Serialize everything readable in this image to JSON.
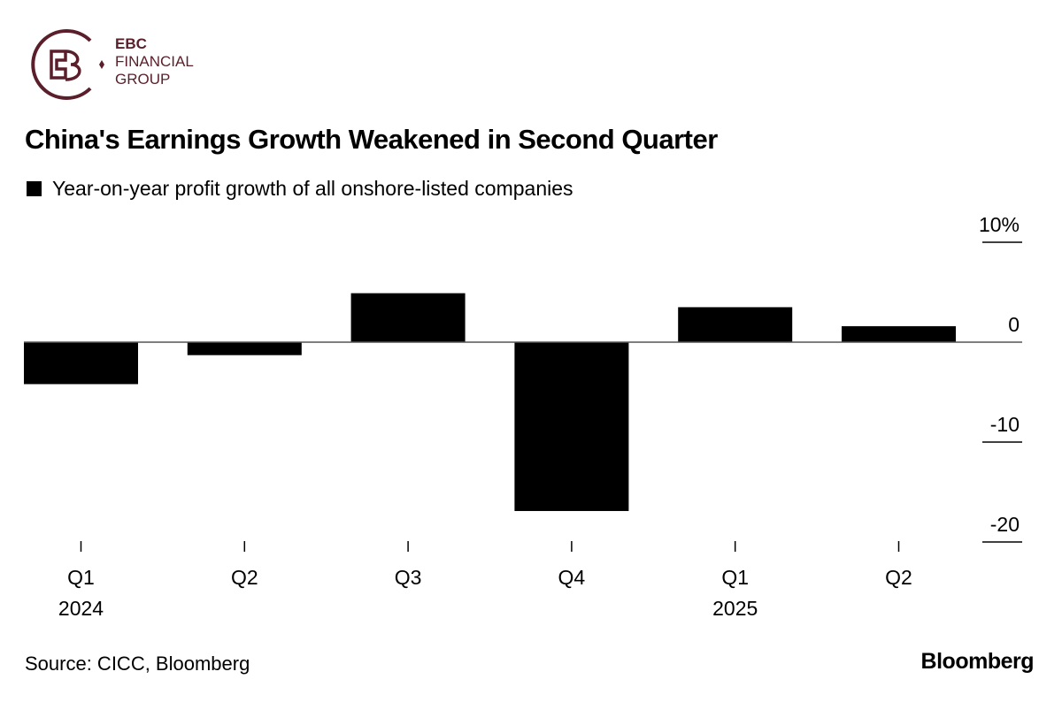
{
  "logo": {
    "line1": "EBC",
    "line2": "FINANCIAL",
    "line3": "GROUP",
    "color": "#5a1f2b"
  },
  "chart_data": {
    "type": "bar",
    "title": "China's Earnings Growth Weakened in Second Quarter",
    "legend": [
      {
        "name": "Year-on-year profit growth of all onshore-listed companies",
        "color": "#000000"
      }
    ],
    "categories": [
      "Q1",
      "Q2",
      "Q3",
      "Q4",
      "Q1",
      "Q2"
    ],
    "year_labels": [
      "2024",
      "",
      "",
      "",
      "2025",
      ""
    ],
    "values": [
      -4.2,
      -1.3,
      4.9,
      -16.9,
      3.5,
      1.6
    ],
    "unit": "%",
    "ylim": [
      -20,
      10
    ],
    "yticks": [
      10,
      0,
      -10,
      -20
    ],
    "ytick_labels": [
      "10%",
      "0",
      "-10",
      "-20"
    ],
    "yaxis_position": "right",
    "grid": false
  },
  "footer": {
    "source": "Source: CICC, Bloomberg",
    "brand": "Bloomberg"
  }
}
